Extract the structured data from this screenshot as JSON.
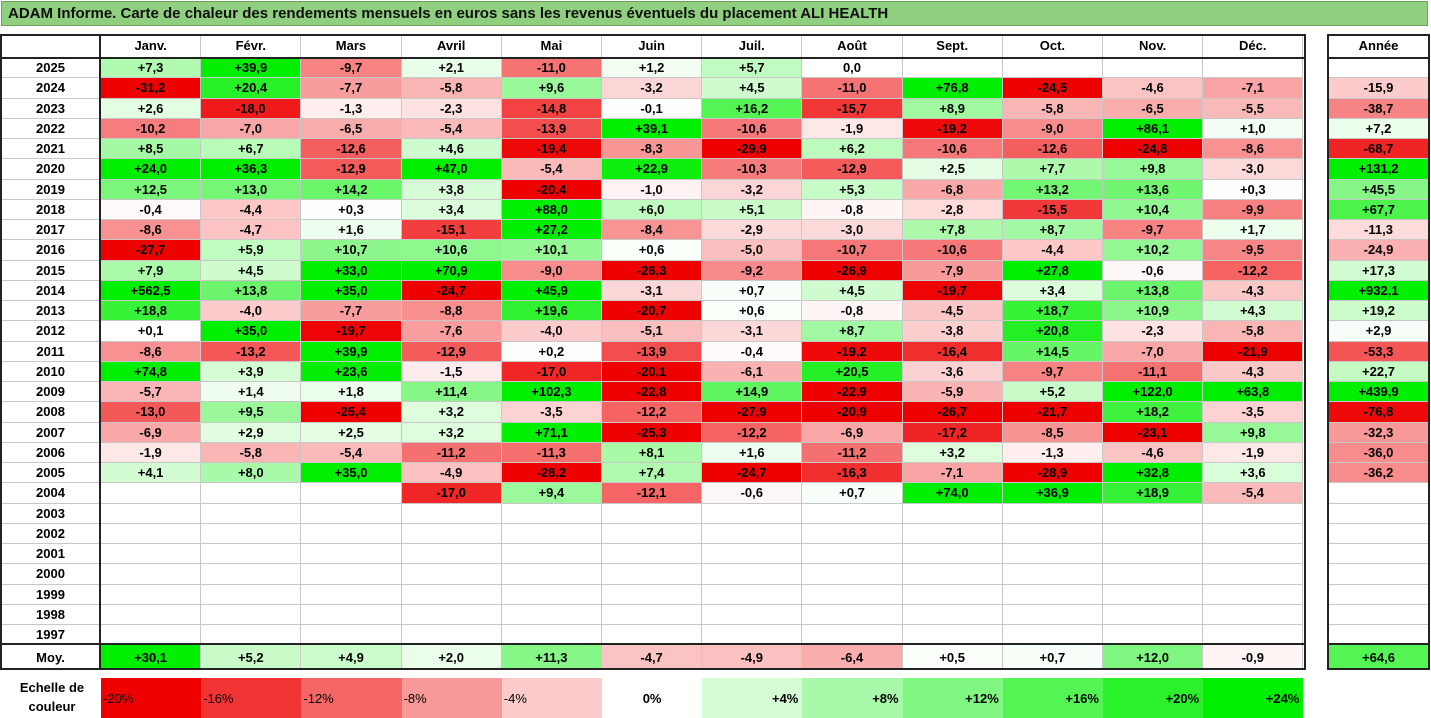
{
  "title": "ADAM Informe. Carte de chaleur des rendements mensuels en euros sans les revenus éventuels du placement ALI HEALTH",
  "chart_data": {
    "type": "heatmap",
    "months": [
      "Janv.",
      "Févr.",
      "Mars",
      "Avril",
      "Mai",
      "Juin",
      "Juil.",
      "Août",
      "Sept.",
      "Oct.",
      "Nov.",
      "Déc."
    ],
    "year_header": "Année",
    "avg_label": "Moy.",
    "rows": [
      {
        "year": "2025",
        "values": [
          7.3,
          39.9,
          -9.7,
          2.1,
          -11.0,
          1.2,
          5.7,
          0.0,
          null,
          null,
          null,
          null
        ],
        "annual": null
      },
      {
        "year": "2024",
        "values": [
          -31.2,
          20.4,
          -7.7,
          -5.8,
          9.6,
          -3.2,
          4.5,
          -11.0,
          76.8,
          -24.5,
          -4.6,
          -7.1
        ],
        "annual": -15.9
      },
      {
        "year": "2023",
        "values": [
          2.6,
          -18.0,
          -1.3,
          -2.3,
          -14.8,
          -0.1,
          16.2,
          -15.7,
          8.9,
          -5.8,
          -6.5,
          -5.5
        ],
        "annual": -38.7
      },
      {
        "year": "2022",
        "values": [
          -10.2,
          -7.0,
          -6.5,
          -5.4,
          -13.9,
          39.1,
          -10.6,
          -1.9,
          -19.2,
          -9.0,
          86.1,
          1.0
        ],
        "annual": 7.2
      },
      {
        "year": "2021",
        "values": [
          8.5,
          6.7,
          -12.6,
          4.6,
          -19.4,
          -8.3,
          -29.9,
          6.2,
          -10.6,
          -12.6,
          -24.8,
          -8.6
        ],
        "annual": -68.7
      },
      {
        "year": "2020",
        "values": [
          24.0,
          36.3,
          -12.9,
          47.0,
          -5.4,
          22.9,
          -10.3,
          -12.9,
          2.5,
          7.7,
          9.8,
          -3.0
        ],
        "annual": 131.2
      },
      {
        "year": "2019",
        "values": [
          12.5,
          13.0,
          14.2,
          3.8,
          -20.4,
          -1.0,
          -3.2,
          5.3,
          -6.8,
          13.2,
          13.6,
          0.3
        ],
        "annual": 45.5
      },
      {
        "year": "2018",
        "values": [
          -0.4,
          -4.4,
          0.3,
          3.4,
          88.0,
          6.0,
          5.1,
          -0.8,
          -2.8,
          -15.5,
          10.4,
          -9.9
        ],
        "annual": 67.7
      },
      {
        "year": "2017",
        "values": [
          -8.6,
          -4.7,
          1.6,
          -15.1,
          27.2,
          -8.4,
          -2.9,
          -3.0,
          7.8,
          8.7,
          -9.7,
          1.7
        ],
        "annual": -11.3
      },
      {
        "year": "2016",
        "values": [
          -27.7,
          5.9,
          10.7,
          10.6,
          10.1,
          0.6,
          -5.0,
          -10.7,
          -10.6,
          -4.4,
          10.2,
          -9.5
        ],
        "annual": -24.9
      },
      {
        "year": "2015",
        "values": [
          7.9,
          4.5,
          33.0,
          70.9,
          -9.0,
          -26.3,
          -9.2,
          -26.9,
          -7.9,
          27.8,
          -0.6,
          -12.2
        ],
        "annual": 17.3
      },
      {
        "year": "2014",
        "values": [
          562.5,
          13.8,
          35.0,
          -24.7,
          45.9,
          -3.1,
          0.7,
          4.5,
          -19.7,
          3.4,
          13.8,
          -4.3
        ],
        "annual": 932.1
      },
      {
        "year": "2013",
        "values": [
          18.8,
          -4.0,
          -7.7,
          -8.8,
          19.6,
          -20.7,
          0.6,
          -0.8,
          -4.5,
          18.7,
          10.9,
          4.3
        ],
        "annual": 19.2
      },
      {
        "year": "2012",
        "values": [
          0.1,
          35.0,
          -19.7,
          -7.6,
          -4.0,
          -5.1,
          -3.1,
          8.7,
          -3.8,
          20.8,
          -2.3,
          -5.8
        ],
        "annual": 2.9
      },
      {
        "year": "2011",
        "values": [
          -8.6,
          -13.2,
          39.9,
          -12.9,
          0.2,
          -13.9,
          -0.4,
          -19.2,
          -16.4,
          14.5,
          -7.0,
          -21.9
        ],
        "annual": -53.3
      },
      {
        "year": "2010",
        "values": [
          74.8,
          3.9,
          23.6,
          -1.5,
          -17.0,
          -20.1,
          -6.1,
          20.5,
          -3.6,
          -9.7,
          -11.1,
          -4.3
        ],
        "annual": 22.7
      },
      {
        "year": "2009",
        "values": [
          -5.7,
          1.4,
          1.8,
          11.4,
          102.3,
          -22.8,
          14.9,
          -22.9,
          -5.9,
          5.2,
          122.0,
          63.8
        ],
        "annual": 439.9
      },
      {
        "year": "2008",
        "values": [
          -13.0,
          9.5,
          -25.4,
          3.2,
          -3.5,
          -12.2,
          -27.9,
          -20.9,
          -26.7,
          -21.7,
          18.2,
          -3.5
        ],
        "annual": -76.8
      },
      {
        "year": "2007",
        "values": [
          -6.9,
          2.9,
          2.5,
          3.2,
          71.1,
          -25.3,
          -12.2,
          -6.9,
          -17.2,
          -8.5,
          -23.1,
          9.8
        ],
        "annual": -32.3
      },
      {
        "year": "2006",
        "values": [
          -1.9,
          -5.8,
          -5.4,
          -11.2,
          -11.3,
          8.1,
          1.6,
          -11.2,
          3.2,
          -1.3,
          -4.6,
          -1.9
        ],
        "annual": -36.0
      },
      {
        "year": "2005",
        "values": [
          4.1,
          8.0,
          35.0,
          -4.9,
          -28.2,
          7.4,
          -24.7,
          -16.3,
          -7.1,
          -28.9,
          32.8,
          3.6
        ],
        "annual": -36.2
      },
      {
        "year": "2004",
        "values": [
          null,
          null,
          null,
          -17.0,
          9.4,
          -12.1,
          -0.6,
          0.7,
          74.0,
          36.9,
          18.9,
          -5.4
        ],
        "annual": null
      },
      {
        "year": "2003",
        "values": [
          null,
          null,
          null,
          null,
          null,
          null,
          null,
          null,
          null,
          null,
          null,
          null
        ],
        "annual": null
      },
      {
        "year": "2002",
        "values": [
          null,
          null,
          null,
          null,
          null,
          null,
          null,
          null,
          null,
          null,
          null,
          null
        ],
        "annual": null
      },
      {
        "year": "2001",
        "values": [
          null,
          null,
          null,
          null,
          null,
          null,
          null,
          null,
          null,
          null,
          null,
          null
        ],
        "annual": null
      },
      {
        "year": "2000",
        "values": [
          null,
          null,
          null,
          null,
          null,
          null,
          null,
          null,
          null,
          null,
          null,
          null
        ],
        "annual": null
      },
      {
        "year": "1999",
        "values": [
          null,
          null,
          null,
          null,
          null,
          null,
          null,
          null,
          null,
          null,
          null,
          null
        ],
        "annual": null
      },
      {
        "year": "1998",
        "values": [
          null,
          null,
          null,
          null,
          null,
          null,
          null,
          null,
          null,
          null,
          null,
          null
        ],
        "annual": null
      },
      {
        "year": "1997",
        "values": [
          null,
          null,
          null,
          null,
          null,
          null,
          null,
          null,
          null,
          null,
          null,
          null
        ],
        "annual": null
      }
    ],
    "averages": [
      30.1,
      5.2,
      4.9,
      2.0,
      11.3,
      -4.7,
      -4.9,
      -6.4,
      0.5,
      0.7,
      12.0,
      -0.9
    ],
    "avg_annual": 64.6,
    "legend": {
      "label": "Echelle de couleur",
      "stops": [
        "-20%",
        "-16%",
        "-12%",
        "-8%",
        "-4%",
        "0%",
        "+4%",
        "+8%",
        "+12%",
        "+16%",
        "+20%",
        "+24%"
      ],
      "stop_values": [
        -20,
        -16,
        -12,
        -8,
        -4,
        0,
        4,
        8,
        12,
        16,
        20,
        24
      ]
    }
  }
}
